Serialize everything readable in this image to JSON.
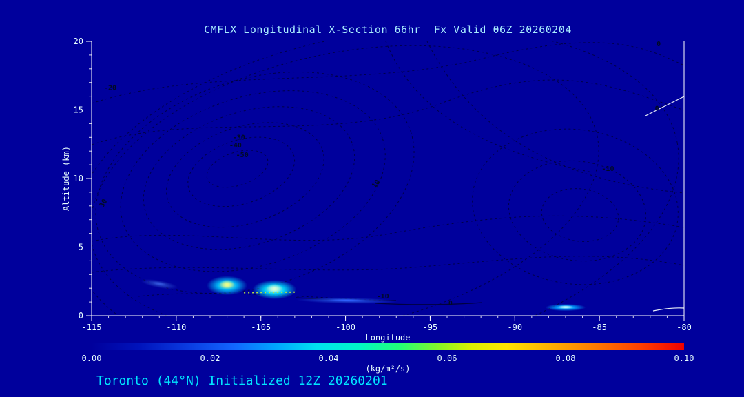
{
  "colors": {
    "background": "#00009c",
    "axis": "#ffffff",
    "tick_labels": "#e8ffff",
    "contour": "#000040",
    "contour_label": "#000a24",
    "zero_contour": "#e8eef8",
    "title": "#a8ecff",
    "footer": "#00e5ff"
  },
  "chart_data": {
    "type": "heatmap",
    "title": "CMFLX Longitudinal X-Section 66hr  Fx Valid 06Z 20260204",
    "footer": "Toronto (44°N) Initialized 12Z 20260201",
    "xlabel": "Longitude",
    "ylabel": "Altitude (km)",
    "xlim": [
      -115,
      -80
    ],
    "ylim": [
      0,
      20
    ],
    "x_ticks": [
      -115,
      -110,
      -105,
      -100,
      -95,
      -90,
      -85,
      -80
    ],
    "y_ticks": [
      0,
      5,
      10,
      15,
      20
    ],
    "x_minor_step": 1,
    "y_minor_step": 1,
    "grid": false,
    "legend": "colorbar-bottom",
    "contour_annotations": [
      {
        "value": "-20",
        "lon": -113.9,
        "alt": 16.6,
        "rot": 0
      },
      {
        "value": "-30",
        "lon": -106.3,
        "alt": 13.0,
        "rot": 0
      },
      {
        "value": "-40",
        "lon": -106.5,
        "alt": 12.4,
        "rot": 0
      },
      {
        "value": "-50",
        "lon": -106.1,
        "alt": 11.7,
        "rot": 0
      },
      {
        "value": "30",
        "lon": -114.3,
        "alt": 8.2,
        "rot": -60
      },
      {
        "value": "10",
        "lon": -98.2,
        "alt": 9.6,
        "rot": -50
      },
      {
        "value": "-10",
        "lon": -84.5,
        "alt": 10.7,
        "rot": 0
      },
      {
        "value": "-10",
        "lon": -97.8,
        "alt": 1.4,
        "rot": 0
      },
      {
        "value": "0",
        "lon": -93.8,
        "alt": 0.9,
        "rot": 0
      },
      {
        "value": "0",
        "lon": -81.6,
        "alt": 15.1,
        "rot": 0
      },
      {
        "value": "0",
        "lon": -81.5,
        "alt": 19.8,
        "rot": 0
      }
    ],
    "features": [
      {
        "name": "wisp-west",
        "type": "blob",
        "lon": -111.0,
        "alt": 2.3,
        "rx_deg": 1.1,
        "ry_km": 0.28,
        "rot": 10,
        "core": "#3355dd",
        "mid": "#1b34bb"
      },
      {
        "name": "plume-west",
        "type": "blob",
        "lon": -107.0,
        "alt": 2.2,
        "rx_deg": 1.2,
        "ry_km": 0.7,
        "rot": 0,
        "core": "#eeff88",
        "mid": "#00c8ff"
      },
      {
        "name": "plume-main",
        "type": "blob",
        "lon": -104.2,
        "alt": 1.9,
        "rx_deg": 1.3,
        "ry_km": 0.7,
        "rot": 0,
        "core": "#d8ffd8",
        "mid": "#00e0ff"
      },
      {
        "name": "speckle-line",
        "type": "dash",
        "lon1": -106.0,
        "alt1": 1.68,
        "lon2": -103.0,
        "alt2": 1.72,
        "color": "#b8e640"
      },
      {
        "name": "streak-mid",
        "type": "blob",
        "lon": -99.9,
        "alt": 1.1,
        "rx_deg": 3.0,
        "ry_km": 0.22,
        "rot": 1,
        "core": "#2f62ff",
        "mid": "#1738c8"
      },
      {
        "name": "spot-east",
        "type": "blob",
        "lon": -87.0,
        "alt": 0.6,
        "rx_deg": 1.2,
        "ry_km": 0.26,
        "rot": 0,
        "core": "#bfffff",
        "mid": "#00a0ff"
      }
    ],
    "colorbar": {
      "min": 0.0,
      "max": 0.1,
      "tick_values": [
        0,
        0.02,
        0.04,
        0.06,
        0.08,
        0.1
      ],
      "tick_labels": [
        "0.00",
        "0.02",
        "0.04",
        "0.06",
        "0.08",
        "0.10"
      ],
      "units": "(kg/m²/s)",
      "gradient": [
        "#00009c 0%",
        "#0013bb 8%",
        "#0a3ae0 16%",
        "#1266ff 24%",
        "#00a4ff 31%",
        "#00e0f0 38%",
        "#00f5c8 45%",
        "#22ff77 52%",
        "#8cf522 59%",
        "#d8f000 64%",
        "#ffe400 70%",
        "#ffb300 77%",
        "#ff7a00 85%",
        "#ff3c00 93%",
        "#f00000 100%"
      ]
    }
  }
}
